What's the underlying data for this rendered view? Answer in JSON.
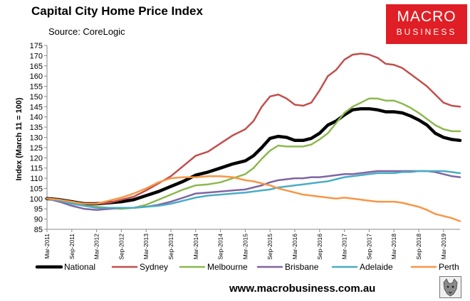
{
  "header": {
    "title": "Capital City Home Price Index",
    "source": "Source: CoreLogic"
  },
  "logo": {
    "line1": "MACRO",
    "line2": "BUSINESS"
  },
  "footer": {
    "website": "www.macrobusiness.com.au",
    "badge_icon": "wolf-mascot-icon"
  },
  "chart_data": {
    "type": "line",
    "title": "Capital City Home Price Index",
    "ylabel": "Index (March 11 = 100)",
    "xlabel": "",
    "ylim": [
      85,
      175
    ],
    "yticks": [
      85,
      90,
      95,
      100,
      105,
      110,
      115,
      120,
      125,
      130,
      135,
      140,
      145,
      150,
      155,
      160,
      165,
      170,
      175
    ],
    "x_range_months": [
      0,
      100
    ],
    "x_ticks": [
      {
        "label": "Mar-2011",
        "m": 0
      },
      {
        "label": "Sep-2011",
        "m": 6
      },
      {
        "label": "Mar-2012",
        "m": 12
      },
      {
        "label": "Sep-2012",
        "m": 18
      },
      {
        "label": "Mar-2013",
        "m": 24
      },
      {
        "label": "Sep-2013",
        "m": 30
      },
      {
        "label": "Mar-2014",
        "m": 36
      },
      {
        "label": "Sep-2014",
        "m": 42
      },
      {
        "label": "Mar-2015",
        "m": 48
      },
      {
        "label": "Sep-2015",
        "m": 54
      },
      {
        "label": "Mar-2016",
        "m": 60
      },
      {
        "label": "Sep-2016",
        "m": 66
      },
      {
        "label": "Mar-2017",
        "m": 72
      },
      {
        "label": "Sep-2017",
        "m": 78
      },
      {
        "label": "Mar-2018",
        "m": 84
      },
      {
        "label": "Sep-2018",
        "m": 90
      },
      {
        "label": "Mar-2019",
        "m": 96
      }
    ],
    "grid": false,
    "legend": "bottom",
    "series": [
      {
        "name": "National",
        "color": "#000000",
        "width": 4.5,
        "points": [
          [
            0,
            100
          ],
          [
            3,
            99.5
          ],
          [
            6,
            98.5
          ],
          [
            9,
            97.5
          ],
          [
            12,
            97.5
          ],
          [
            15,
            98
          ],
          [
            18,
            98.5
          ],
          [
            21,
            99.5
          ],
          [
            24,
            101.5
          ],
          [
            27,
            103.5
          ],
          [
            30,
            106
          ],
          [
            33,
            108.5
          ],
          [
            36,
            111.5
          ],
          [
            39,
            113
          ],
          [
            42,
            115
          ],
          [
            45,
            117
          ],
          [
            48,
            118.5
          ],
          [
            50,
            121
          ],
          [
            52,
            125
          ],
          [
            54,
            129.5
          ],
          [
            56,
            130.5
          ],
          [
            58,
            130
          ],
          [
            60,
            128.5
          ],
          [
            62,
            128.5
          ],
          [
            64,
            129.5
          ],
          [
            66,
            132
          ],
          [
            68,
            136
          ],
          [
            70,
            138
          ],
          [
            72,
            141
          ],
          [
            74,
            143.5
          ],
          [
            76,
            144
          ],
          [
            78,
            144
          ],
          [
            80,
            143.5
          ],
          [
            82,
            142.5
          ],
          [
            84,
            142.5
          ],
          [
            86,
            142
          ],
          [
            88,
            140.5
          ],
          [
            90,
            138.5
          ],
          [
            92,
            136
          ],
          [
            94,
            132
          ],
          [
            96,
            130
          ],
          [
            98,
            129
          ],
          [
            100,
            128.5
          ]
        ]
      },
      {
        "name": "Sydney",
        "color": "#c0504d",
        "width": 2.5,
        "points": [
          [
            0,
            100
          ],
          [
            3,
            99.5
          ],
          [
            6,
            98.5
          ],
          [
            9,
            97.5
          ],
          [
            12,
            97.5
          ],
          [
            15,
            98
          ],
          [
            18,
            99.5
          ],
          [
            21,
            101
          ],
          [
            24,
            104
          ],
          [
            27,
            107.5
          ],
          [
            30,
            111
          ],
          [
            33,
            116
          ],
          [
            36,
            121
          ],
          [
            39,
            123
          ],
          [
            42,
            127
          ],
          [
            45,
            131
          ],
          [
            48,
            134
          ],
          [
            50,
            138
          ],
          [
            52,
            145
          ],
          [
            54,
            150
          ],
          [
            56,
            151
          ],
          [
            58,
            149
          ],
          [
            60,
            146
          ],
          [
            62,
            145.5
          ],
          [
            64,
            147
          ],
          [
            66,
            153
          ],
          [
            68,
            160
          ],
          [
            70,
            163
          ],
          [
            72,
            168
          ],
          [
            74,
            170.5
          ],
          [
            76,
            171
          ],
          [
            78,
            170.5
          ],
          [
            80,
            169
          ],
          [
            82,
            166
          ],
          [
            84,
            165.5
          ],
          [
            86,
            164
          ],
          [
            88,
            161
          ],
          [
            90,
            158
          ],
          [
            92,
            155
          ],
          [
            94,
            151
          ],
          [
            96,
            147
          ],
          [
            98,
            145.5
          ],
          [
            100,
            145
          ]
        ]
      },
      {
        "name": "Melbourne",
        "color": "#8db84f",
        "width": 2.5,
        "points": [
          [
            0,
            100
          ],
          [
            3,
            99.5
          ],
          [
            6,
            98
          ],
          [
            9,
            96.5
          ],
          [
            12,
            96
          ],
          [
            15,
            95.5
          ],
          [
            18,
            95
          ],
          [
            21,
            95.5
          ],
          [
            24,
            97
          ],
          [
            27,
            99.5
          ],
          [
            30,
            102
          ],
          [
            33,
            104.5
          ],
          [
            36,
            106.5
          ],
          [
            39,
            107
          ],
          [
            42,
            108
          ],
          [
            45,
            110
          ],
          [
            48,
            112
          ],
          [
            50,
            115
          ],
          [
            52,
            119.5
          ],
          [
            54,
            123.5
          ],
          [
            56,
            126
          ],
          [
            58,
            125.5
          ],
          [
            60,
            125.5
          ],
          [
            62,
            125.5
          ],
          [
            64,
            126.5
          ],
          [
            66,
            129
          ],
          [
            68,
            132
          ],
          [
            70,
            137
          ],
          [
            72,
            142
          ],
          [
            74,
            145
          ],
          [
            76,
            147
          ],
          [
            78,
            149
          ],
          [
            80,
            149
          ],
          [
            82,
            148
          ],
          [
            84,
            148
          ],
          [
            86,
            146.5
          ],
          [
            88,
            144.5
          ],
          [
            90,
            142
          ],
          [
            92,
            139
          ],
          [
            94,
            136
          ],
          [
            96,
            134
          ],
          [
            98,
            133
          ],
          [
            100,
            133
          ]
        ]
      },
      {
        "name": "Brisbane",
        "color": "#8064a2",
        "width": 2.5,
        "points": [
          [
            0,
            100
          ],
          [
            3,
            98.5
          ],
          [
            6,
            96.5
          ],
          [
            9,
            95
          ],
          [
            12,
            94.5
          ],
          [
            15,
            95
          ],
          [
            18,
            95.5
          ],
          [
            21,
            95.5
          ],
          [
            24,
            96
          ],
          [
            27,
            97
          ],
          [
            30,
            98.5
          ],
          [
            33,
            100.5
          ],
          [
            36,
            102.5
          ],
          [
            39,
            103
          ],
          [
            42,
            103.5
          ],
          [
            45,
            104
          ],
          [
            48,
            104.5
          ],
          [
            50,
            105.5
          ],
          [
            52,
            106.5
          ],
          [
            54,
            108
          ],
          [
            56,
            109
          ],
          [
            58,
            109.5
          ],
          [
            60,
            110
          ],
          [
            62,
            110
          ],
          [
            64,
            110.5
          ],
          [
            66,
            110.5
          ],
          [
            68,
            111
          ],
          [
            70,
            111.5
          ],
          [
            72,
            112
          ],
          [
            74,
            112
          ],
          [
            76,
            112.5
          ],
          [
            78,
            113
          ],
          [
            80,
            113.5
          ],
          [
            82,
            113.5
          ],
          [
            84,
            113.5
          ],
          [
            86,
            113.5
          ],
          [
            88,
            113.5
          ],
          [
            90,
            113.5
          ],
          [
            92,
            113.5
          ],
          [
            94,
            113
          ],
          [
            96,
            112
          ],
          [
            98,
            111
          ],
          [
            100,
            110.5
          ]
        ]
      },
      {
        "name": "Adelaide",
        "color": "#4bacc6",
        "width": 2.5,
        "points": [
          [
            0,
            100
          ],
          [
            3,
            99
          ],
          [
            6,
            97.5
          ],
          [
            9,
            96.5
          ],
          [
            12,
            95.5
          ],
          [
            15,
            95.5
          ],
          [
            18,
            95.5
          ],
          [
            21,
            95.5
          ],
          [
            24,
            96
          ],
          [
            27,
            96.5
          ],
          [
            30,
            97.5
          ],
          [
            33,
            99
          ],
          [
            36,
            100.5
          ],
          [
            39,
            101.5
          ],
          [
            42,
            102
          ],
          [
            45,
            102.5
          ],
          [
            48,
            103
          ],
          [
            50,
            103.5
          ],
          [
            52,
            104
          ],
          [
            54,
            104.5
          ],
          [
            56,
            105.5
          ],
          [
            58,
            106
          ],
          [
            60,
            106.5
          ],
          [
            62,
            107
          ],
          [
            64,
            107.5
          ],
          [
            66,
            108
          ],
          [
            68,
            108.5
          ],
          [
            70,
            109.5
          ],
          [
            72,
            110.5
          ],
          [
            74,
            111
          ],
          [
            76,
            111.5
          ],
          [
            78,
            112
          ],
          [
            80,
            112.5
          ],
          [
            82,
            112.5
          ],
          [
            84,
            112.5
          ],
          [
            86,
            113
          ],
          [
            88,
            113
          ],
          [
            90,
            113.5
          ],
          [
            92,
            113.5
          ],
          [
            94,
            113.5
          ],
          [
            96,
            113.5
          ],
          [
            98,
            113
          ],
          [
            100,
            112.5
          ]
        ]
      },
      {
        "name": "Perth",
        "color": "#f79646",
        "width": 2.5,
        "points": [
          [
            0,
            100
          ],
          [
            3,
            99.5
          ],
          [
            6,
            98.5
          ],
          [
            9,
            97.5
          ],
          [
            12,
            97.5
          ],
          [
            15,
            99
          ],
          [
            18,
            100.5
          ],
          [
            21,
            102.5
          ],
          [
            24,
            105
          ],
          [
            27,
            108
          ],
          [
            30,
            110
          ],
          [
            33,
            110.5
          ],
          [
            36,
            110.5
          ],
          [
            39,
            111
          ],
          [
            42,
            111
          ],
          [
            45,
            110.5
          ],
          [
            48,
            109
          ],
          [
            50,
            108.5
          ],
          [
            52,
            107.5
          ],
          [
            54,
            106.5
          ],
          [
            56,
            105
          ],
          [
            58,
            104
          ],
          [
            60,
            103
          ],
          [
            62,
            102
          ],
          [
            64,
            101.5
          ],
          [
            66,
            101
          ],
          [
            68,
            100.5
          ],
          [
            70,
            100
          ],
          [
            72,
            100.5
          ],
          [
            74,
            100
          ],
          [
            76,
            99.5
          ],
          [
            78,
            99
          ],
          [
            80,
            98.5
          ],
          [
            82,
            98.5
          ],
          [
            84,
            98.5
          ],
          [
            86,
            98
          ],
          [
            88,
            97
          ],
          [
            90,
            96
          ],
          [
            92,
            94.5
          ],
          [
            94,
            92.5
          ],
          [
            96,
            91.5
          ],
          [
            98,
            90.5
          ],
          [
            100,
            89
          ]
        ]
      }
    ]
  }
}
